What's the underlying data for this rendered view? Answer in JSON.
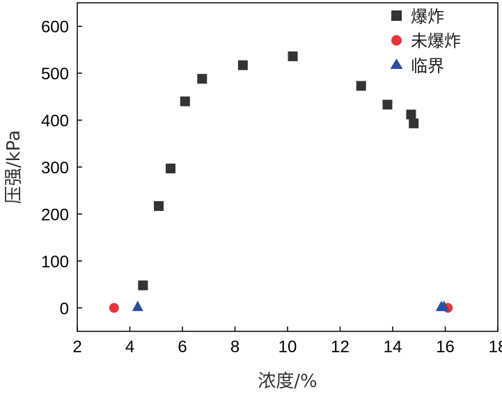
{
  "chart_data": {
    "type": "scatter",
    "title": "",
    "xlabel": "浓度/%",
    "ylabel": "压强/kPa",
    "xlim": [
      2,
      18
    ],
    "ylim": [
      -50,
      650
    ],
    "xticks": [
      "2",
      "4",
      "6",
      "8",
      "10",
      "12",
      "14",
      "16",
      "18"
    ],
    "yticks": [
      "0",
      "100",
      "200",
      "300",
      "400",
      "500",
      "600"
    ],
    "legend_position": "top-right",
    "series": [
      {
        "name": "爆炸",
        "marker": "square",
        "color": "#333333",
        "points": [
          [
            4.5,
            48
          ],
          [
            5.1,
            217
          ],
          [
            5.55,
            297
          ],
          [
            6.1,
            440
          ],
          [
            6.75,
            488
          ],
          [
            8.3,
            517
          ],
          [
            10.2,
            536
          ],
          [
            12.8,
            473
          ],
          [
            13.8,
            433
          ],
          [
            14.7,
            412
          ],
          [
            14.8,
            393
          ]
        ]
      },
      {
        "name": "未爆炸",
        "marker": "circle",
        "color": "#e8343a",
        "points": [
          [
            3.4,
            0
          ],
          [
            16.1,
            0
          ]
        ]
      },
      {
        "name": "临界",
        "marker": "triangle",
        "color": "#2b4f9e",
        "points": [
          [
            4.3,
            2
          ],
          [
            15.85,
            2
          ],
          [
            15.95,
            2
          ]
        ]
      }
    ]
  }
}
